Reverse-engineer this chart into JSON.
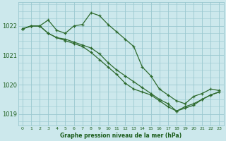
{
  "bg_color": "#cce8ec",
  "grid_color": "#9ac8d0",
  "line_color": "#2d6a2d",
  "title": "Graphe pression niveau de la mer (hPa)",
  "title_color": "#1a5c1a",
  "xlim": [
    -0.5,
    23.5
  ],
  "ylim": [
    1018.6,
    1022.8
  ],
  "yticks": [
    1019,
    1020,
    1021,
    1022
  ],
  "xticks": [
    0,
    1,
    2,
    3,
    4,
    5,
    6,
    7,
    8,
    9,
    10,
    11,
    12,
    13,
    14,
    15,
    16,
    17,
    18,
    19,
    20,
    21,
    22,
    23
  ],
  "series1_x": [
    0,
    1,
    2,
    3,
    4,
    5,
    6,
    7,
    8,
    9,
    10,
    11,
    12,
    13,
    14,
    15,
    16,
    17,
    18,
    19,
    20,
    21,
    22,
    23
  ],
  "series1_y": [
    1021.9,
    1022.0,
    1022.0,
    1022.2,
    1021.85,
    1021.75,
    1022.0,
    1022.05,
    1022.45,
    1022.35,
    1022.05,
    1021.8,
    1021.55,
    1021.3,
    1020.6,
    1020.3,
    1019.85,
    1019.65,
    1019.45,
    1019.35,
    1019.6,
    1019.7,
    1019.85,
    1019.8
  ],
  "series2_x": [
    0,
    1,
    2,
    3,
    4,
    5,
    6,
    7,
    8,
    9,
    10,
    11,
    12,
    13,
    14,
    15,
    16,
    17,
    18,
    19,
    20,
    21,
    22,
    23
  ],
  "series2_y": [
    1021.9,
    1022.0,
    1022.0,
    1021.75,
    1021.6,
    1021.55,
    1021.45,
    1021.35,
    1021.25,
    1021.05,
    1020.75,
    1020.5,
    1020.3,
    1020.1,
    1019.9,
    1019.7,
    1019.5,
    1019.35,
    1019.1,
    1019.25,
    1019.35,
    1019.5,
    1019.65,
    1019.75
  ],
  "series3_x": [
    0,
    1,
    2,
    3,
    4,
    5,
    6,
    7,
    8,
    9,
    10,
    11,
    12,
    13,
    14,
    15,
    16,
    17,
    18,
    19,
    20,
    21,
    22,
    23
  ],
  "series3_y": [
    1021.9,
    1022.0,
    1022.0,
    1021.75,
    1021.6,
    1021.5,
    1021.4,
    1021.3,
    1021.1,
    1020.85,
    1020.6,
    1020.35,
    1020.05,
    1019.85,
    1019.75,
    1019.65,
    1019.45,
    1019.25,
    1019.1,
    1019.2,
    1019.3,
    1019.5,
    1019.65,
    1019.75
  ]
}
